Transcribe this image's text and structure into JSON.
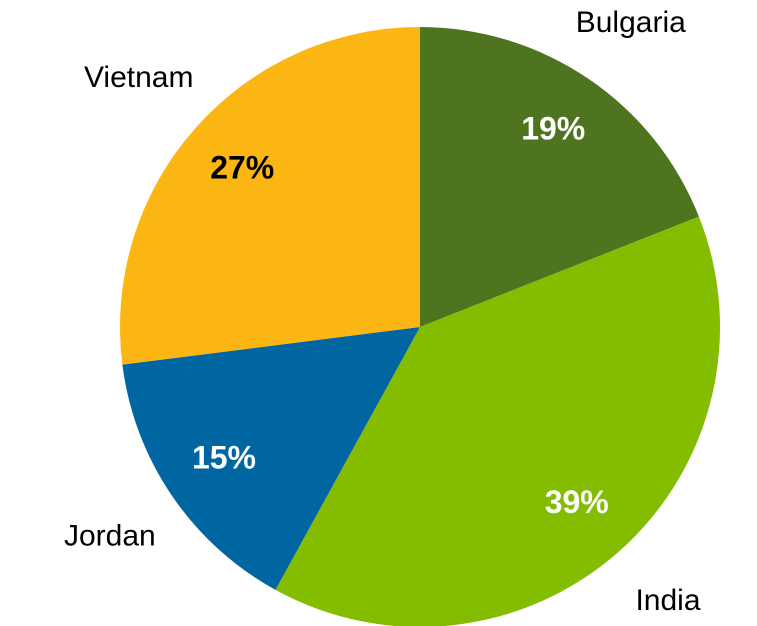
{
  "chart_data": {
    "type": "pie",
    "categories": [
      "Bulgaria",
      "India",
      "Jordan",
      "Vietnam"
    ],
    "values": [
      19,
      39,
      15,
      27
    ],
    "value_labels": [
      "19%",
      "39%",
      "15%",
      "27%"
    ],
    "colors": [
      "#4e7420",
      "#84bc00",
      "#0066a1",
      "#fbb614"
    ],
    "label_colors": [
      "#ffffff",
      "#ffffff",
      "#ffffff",
      "#000000"
    ]
  }
}
